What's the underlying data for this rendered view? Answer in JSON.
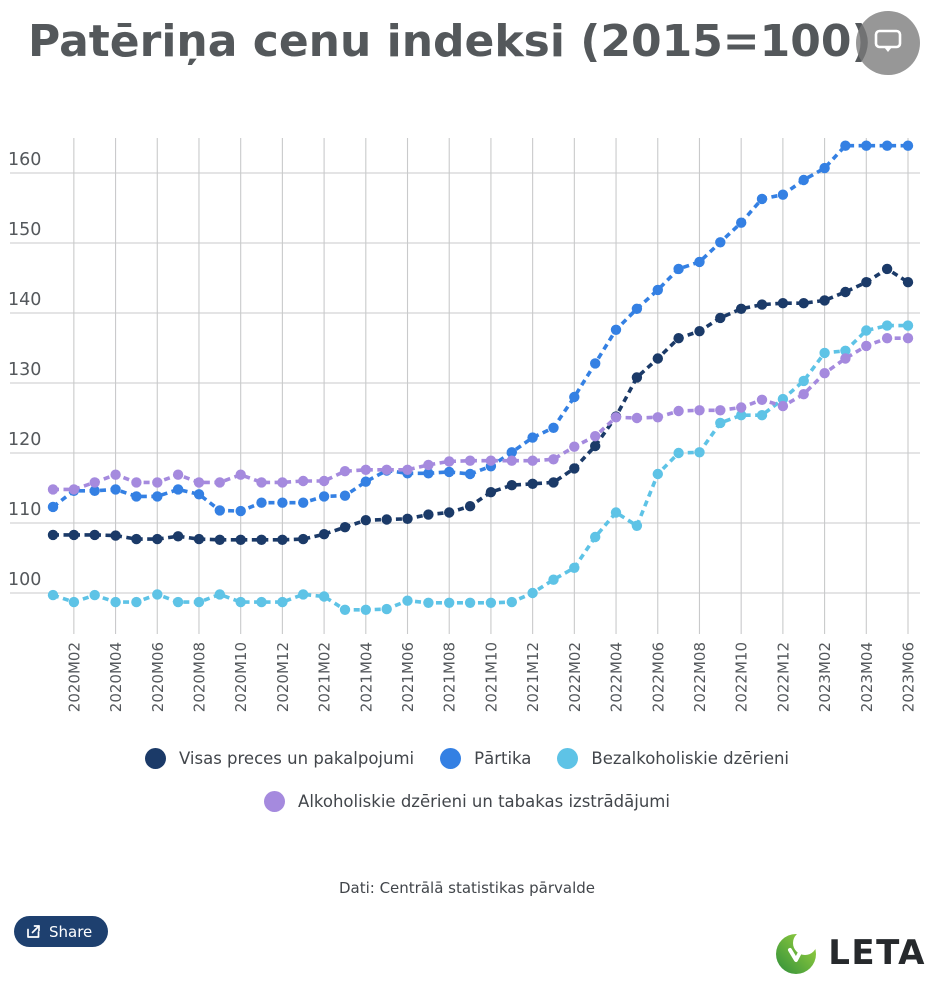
{
  "header": {
    "title": "Patēriņa cenu indeksi (2015=100)"
  },
  "icons": {
    "export": "screen-capture-icon",
    "share": "share-arrow-icon",
    "logo": "leta-leaf-icon"
  },
  "chart_data": {
    "type": "line",
    "title": "Patēriņa cenu indeksi (2015=100)",
    "x": [
      "2020M01",
      "2020M02",
      "2020M03",
      "2020M04",
      "2020M05",
      "2020M06",
      "2020M07",
      "2020M08",
      "2020M09",
      "2020M10",
      "2020M11",
      "2020M12",
      "2021M01",
      "2021M02",
      "2021M03",
      "2021M04",
      "2021M05",
      "2021M06",
      "2021M07",
      "2021M08",
      "2021M09",
      "2021M10",
      "2021M11",
      "2021M12",
      "2022M01",
      "2022M02",
      "2022M03",
      "2022M04",
      "2022M05",
      "2022M06",
      "2022M07",
      "2022M08",
      "2022M09",
      "2022M10",
      "2022M11",
      "2022M12",
      "2023M01",
      "2023M02",
      "2023M03",
      "2023M04",
      "2023M05",
      "2023M06"
    ],
    "x_label_every": 2,
    "ylim": [
      95.5,
      165.5
    ],
    "yticks": [
      100,
      110,
      120,
      130,
      140,
      150,
      160
    ],
    "grid": true,
    "legend_position": "bottom",
    "line_style": "dashed-with-dots",
    "grid_color": "#c9cacb",
    "axis_text_color": "#54585c",
    "series": [
      {
        "name": "Visas preces un pakalpojumi",
        "color": "#1b3a68",
        "values": [
          108.3,
          108.3,
          108.3,
          108.2,
          107.7,
          107.7,
          108.1,
          107.7,
          107.6,
          107.6,
          107.6,
          107.6,
          107.7,
          108.4,
          109.4,
          110.4,
          110.5,
          110.6,
          111.2,
          111.5,
          112.4,
          114.4,
          115.4,
          115.6,
          115.8,
          117.8,
          121.0,
          125.2,
          130.8,
          133.5,
          136.4,
          137.4,
          139.3,
          140.6,
          141.2,
          141.4,
          141.4,
          141.8,
          143.0,
          144.4,
          146.3,
          144.4
        ]
      },
      {
        "name": "Pārtika",
        "color": "#3480e3",
        "values": [
          112.3,
          114.6,
          114.6,
          114.8,
          113.8,
          113.8,
          114.8,
          114.1,
          111.8,
          111.7,
          112.9,
          112.9,
          112.9,
          113.8,
          113.9,
          115.9,
          117.5,
          117.1,
          117.1,
          117.3,
          117.0,
          118.1,
          120.1,
          122.2,
          123.6,
          128.0,
          132.8,
          137.6,
          140.6,
          143.3,
          146.3,
          147.3,
          150.1,
          152.9,
          156.3,
          156.9,
          159.0,
          160.7,
          163.9,
          163.9,
          163.9,
          163.9
        ]
      },
      {
        "name": "Bezalkoholiskie dzērieni",
        "color": "#5ec3e6",
        "values": [
          99.7,
          98.7,
          99.7,
          98.7,
          98.7,
          99.8,
          98.7,
          98.7,
          99.8,
          98.7,
          98.7,
          98.7,
          99.8,
          99.5,
          97.6,
          97.6,
          97.7,
          98.9,
          98.6,
          98.6,
          98.6,
          98.6,
          98.7,
          100.0,
          101.9,
          103.6,
          108.0,
          111.5,
          109.6,
          117.0,
          120.0,
          120.1,
          124.3,
          125.4,
          125.4,
          127.7,
          130.3,
          134.3,
          134.6,
          137.5,
          138.2,
          138.2
        ]
      },
      {
        "name": "Alkoholiskie dzērieni un tabakas izstrādājumi",
        "color": "#a58ade",
        "values": [
          114.8,
          114.8,
          115.8,
          116.9,
          115.8,
          115.8,
          116.9,
          115.8,
          115.8,
          116.9,
          115.8,
          115.8,
          116.0,
          116.0,
          117.4,
          117.6,
          117.6,
          117.6,
          118.3,
          118.8,
          118.9,
          118.9,
          118.9,
          118.9,
          119.1,
          120.9,
          122.4,
          125.1,
          125.0,
          125.1,
          126.0,
          126.1,
          126.1,
          126.5,
          127.6,
          126.7,
          128.4,
          131.4,
          133.5,
          135.3,
          136.4,
          136.4
        ]
      }
    ]
  },
  "footer": {
    "source": "Dati: Centrālā statistikas pārvalde",
    "share_label": "Share",
    "logo_text": "LETA"
  }
}
